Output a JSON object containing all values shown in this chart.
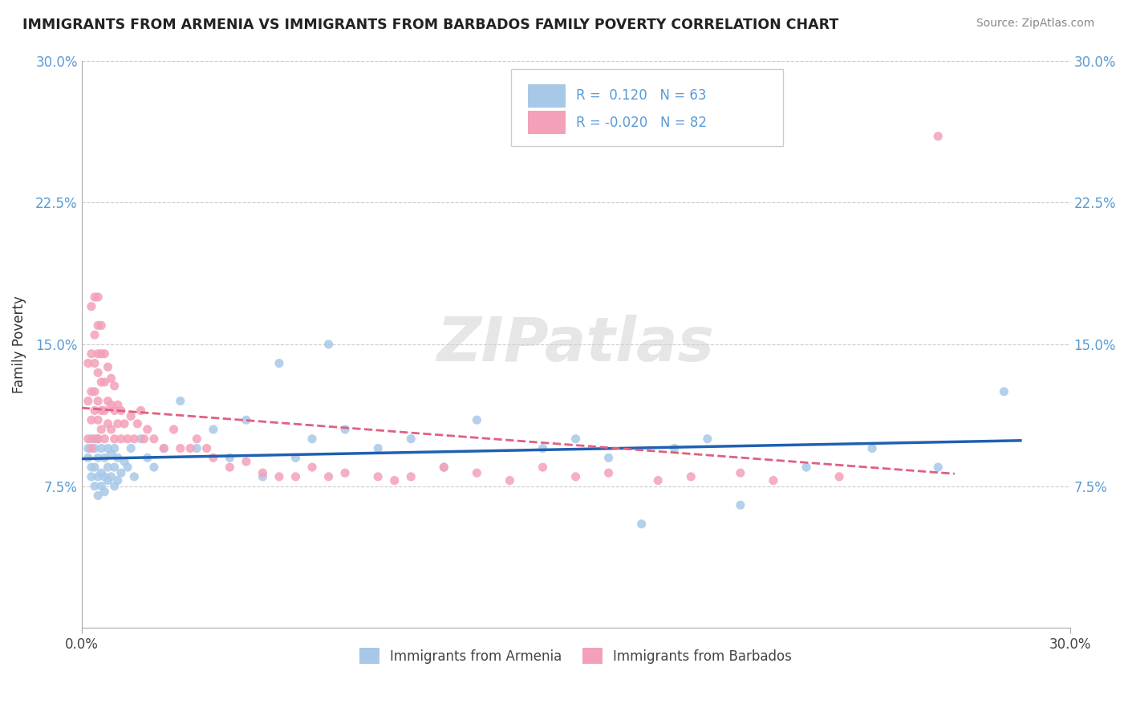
{
  "title": "IMMIGRANTS FROM ARMENIA VS IMMIGRANTS FROM BARBADOS FAMILY POVERTY CORRELATION CHART",
  "source": "Source: ZipAtlas.com",
  "ylabel": "Family Poverty",
  "xlim": [
    0.0,
    0.3
  ],
  "ylim": [
    0.0,
    0.3
  ],
  "ytick_labels": [
    "7.5%",
    "15.0%",
    "22.5%",
    "30.0%"
  ],
  "ytick_positions": [
    0.075,
    0.15,
    0.225,
    0.3
  ],
  "color_armenia": "#A8C8E8",
  "color_barbados": "#F4A0B8",
  "trendline_armenia_color": "#2060B0",
  "trendline_barbados_color": "#E06080",
  "watermark": "ZIPatlas",
  "armenia_x": [
    0.002,
    0.002,
    0.003,
    0.003,
    0.003,
    0.004,
    0.004,
    0.004,
    0.005,
    0.005,
    0.005,
    0.005,
    0.006,
    0.006,
    0.006,
    0.007,
    0.007,
    0.007,
    0.008,
    0.008,
    0.008,
    0.009,
    0.009,
    0.01,
    0.01,
    0.01,
    0.011,
    0.011,
    0.012,
    0.013,
    0.014,
    0.015,
    0.016,
    0.018,
    0.02,
    0.022,
    0.025,
    0.03,
    0.035,
    0.04,
    0.045,
    0.05,
    0.055,
    0.06,
    0.065,
    0.07,
    0.075,
    0.08,
    0.09,
    0.1,
    0.11,
    0.12,
    0.14,
    0.15,
    0.16,
    0.17,
    0.18,
    0.19,
    0.2,
    0.22,
    0.24,
    0.26,
    0.28
  ],
  "armenia_y": [
    0.09,
    0.095,
    0.08,
    0.085,
    0.1,
    0.075,
    0.085,
    0.095,
    0.07,
    0.08,
    0.09,
    0.1,
    0.075,
    0.082,
    0.095,
    0.072,
    0.08,
    0.09,
    0.078,
    0.085,
    0.095,
    0.08,
    0.092,
    0.075,
    0.085,
    0.095,
    0.078,
    0.09,
    0.082,
    0.088,
    0.085,
    0.095,
    0.08,
    0.1,
    0.09,
    0.085,
    0.095,
    0.12,
    0.095,
    0.105,
    0.09,
    0.11,
    0.08,
    0.14,
    0.09,
    0.1,
    0.15,
    0.105,
    0.095,
    0.1,
    0.085,
    0.11,
    0.095,
    0.1,
    0.09,
    0.055,
    0.095,
    0.1,
    0.065,
    0.085,
    0.095,
    0.085,
    0.125
  ],
  "barbados_x": [
    0.002,
    0.002,
    0.002,
    0.003,
    0.003,
    0.003,
    0.003,
    0.003,
    0.004,
    0.004,
    0.004,
    0.004,
    0.004,
    0.004,
    0.005,
    0.005,
    0.005,
    0.005,
    0.005,
    0.005,
    0.005,
    0.006,
    0.006,
    0.006,
    0.006,
    0.006,
    0.007,
    0.007,
    0.007,
    0.007,
    0.008,
    0.008,
    0.008,
    0.009,
    0.009,
    0.009,
    0.01,
    0.01,
    0.01,
    0.011,
    0.011,
    0.012,
    0.012,
    0.013,
    0.014,
    0.015,
    0.016,
    0.017,
    0.018,
    0.019,
    0.02,
    0.022,
    0.025,
    0.028,
    0.03,
    0.033,
    0.035,
    0.038,
    0.04,
    0.045,
    0.05,
    0.055,
    0.06,
    0.065,
    0.07,
    0.075,
    0.08,
    0.09,
    0.095,
    0.1,
    0.11,
    0.12,
    0.13,
    0.14,
    0.15,
    0.16,
    0.175,
    0.185,
    0.2,
    0.21,
    0.23,
    0.26
  ],
  "barbados_y": [
    0.1,
    0.12,
    0.14,
    0.095,
    0.11,
    0.125,
    0.145,
    0.17,
    0.1,
    0.115,
    0.125,
    0.14,
    0.155,
    0.175,
    0.1,
    0.11,
    0.12,
    0.135,
    0.145,
    0.16,
    0.175,
    0.105,
    0.115,
    0.13,
    0.145,
    0.16,
    0.1,
    0.115,
    0.13,
    0.145,
    0.108,
    0.12,
    0.138,
    0.105,
    0.118,
    0.132,
    0.1,
    0.115,
    0.128,
    0.108,
    0.118,
    0.1,
    0.115,
    0.108,
    0.1,
    0.112,
    0.1,
    0.108,
    0.115,
    0.1,
    0.105,
    0.1,
    0.095,
    0.105,
    0.095,
    0.095,
    0.1,
    0.095,
    0.09,
    0.085,
    0.088,
    0.082,
    0.08,
    0.08,
    0.085,
    0.08,
    0.082,
    0.08,
    0.078,
    0.08,
    0.085,
    0.082,
    0.078,
    0.085,
    0.08,
    0.082,
    0.078,
    0.08,
    0.082,
    0.078,
    0.08,
    0.26
  ]
}
